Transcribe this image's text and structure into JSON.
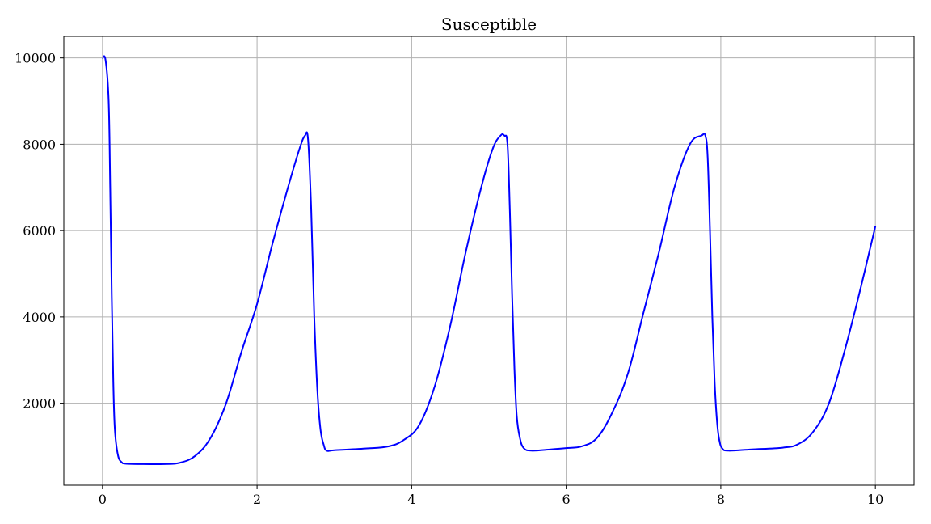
{
  "chart_data": {
    "type": "line",
    "title": "Susceptible",
    "xlabel": "",
    "ylabel": "",
    "xlim": [
      -0.5,
      10.5
    ],
    "ylim": [
      100,
      10500
    ],
    "xticks": [
      0,
      2,
      4,
      6,
      8,
      10
    ],
    "xtick_labels": [
      "0",
      "2",
      "4",
      "6",
      "8",
      "10"
    ],
    "yticks": [
      2000,
      4000,
      6000,
      8000,
      10000
    ],
    "ytick_labels": [
      "2000",
      "4000",
      "6000",
      "8000",
      "10000"
    ],
    "grid": true,
    "legend": "none",
    "series": [
      {
        "color": "#0000ff",
        "x": [
          0,
          0.04,
          0.08,
          0.1,
          0.12,
          0.14,
          0.16,
          0.2,
          0.25,
          0.3,
          0.5,
          0.8,
          1.0,
          1.2,
          1.4,
          1.6,
          1.8,
          2.0,
          2.2,
          2.4,
          2.55,
          2.62,
          2.66,
          2.7,
          2.74,
          2.78,
          2.82,
          2.86,
          2.9,
          3.0,
          3.4,
          3.7,
          3.9,
          4.1,
          4.3,
          4.5,
          4.7,
          4.9,
          5.05,
          5.15,
          5.2,
          5.24,
          5.27,
          5.3,
          5.33,
          5.36,
          5.4,
          5.45,
          5.55,
          5.8,
          6.0,
          6.2,
          6.4,
          6.6,
          6.8,
          7.0,
          7.2,
          7.4,
          7.6,
          7.75,
          7.8,
          7.83,
          7.86,
          7.89,
          7.92,
          7.95,
          7.98,
          8.02,
          8.1,
          8.4,
          8.8,
          9.0,
          9.2,
          9.4,
          9.6,
          9.8,
          10.0
        ],
        "y": [
          10000,
          9950,
          9000,
          7000,
          4500,
          2500,
          1400,
          800,
          630,
          600,
          590,
          590,
          620,
          780,
          1200,
          2000,
          3200,
          4300,
          5700,
          7000,
          7900,
          8200,
          8100,
          6500,
          4000,
          2300,
          1400,
          1050,
          900,
          910,
          950,
          1000,
          1150,
          1500,
          2400,
          3800,
          5500,
          7000,
          7900,
          8200,
          8200,
          8000,
          6500,
          4500,
          2800,
          1700,
          1200,
          960,
          900,
          930,
          960,
          1000,
          1200,
          1800,
          2700,
          4100,
          5500,
          7000,
          8000,
          8200,
          8200,
          7700,
          6000,
          4000,
          2500,
          1600,
          1150,
          950,
          900,
          930,
          970,
          1050,
          1350,
          2000,
          3200,
          4600,
          6100
        ]
      }
    ]
  }
}
